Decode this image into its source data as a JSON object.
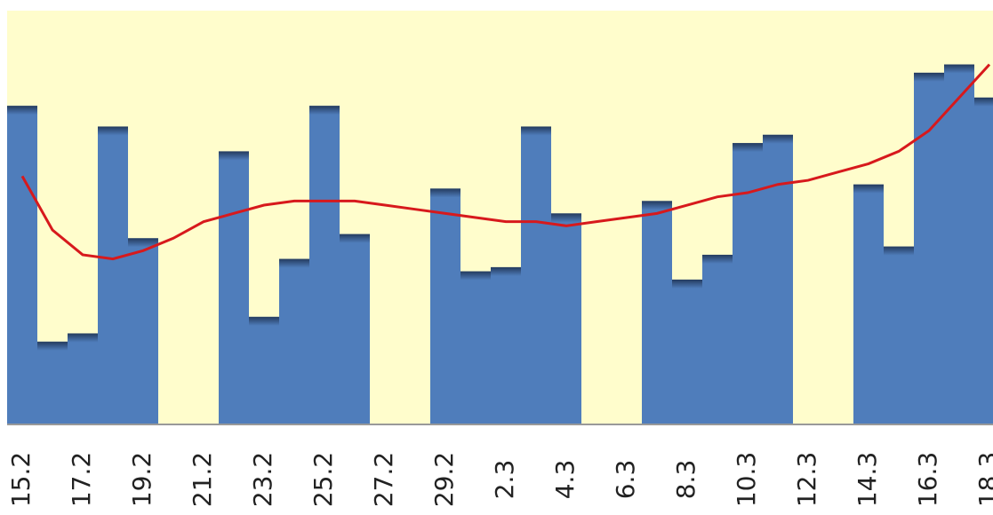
{
  "chart_data": {
    "type": "bar",
    "categories": [
      "15.2",
      null,
      "17.2",
      null,
      "19.2",
      null,
      "21.2",
      null,
      "23.2",
      null,
      "25.2",
      null,
      "27.2",
      null,
      "29.2",
      null,
      "2.3",
      null,
      "4.3",
      null,
      "6.3",
      null,
      "8.3",
      null,
      "10.3",
      null,
      "12.3",
      null,
      "14.3",
      null,
      "16.3",
      null,
      "18.3"
    ],
    "values": [
      77,
      20,
      22,
      72,
      45,
      0,
      0,
      66,
      26,
      40,
      77,
      46,
      0,
      0,
      57,
      37,
      38,
      72,
      51,
      0,
      0,
      54,
      35,
      41,
      68,
      70,
      0,
      0,
      58,
      43,
      85,
      87,
      79
    ],
    "color": "#4f7dbb",
    "trendline": {
      "color": "#d7191c",
      "values": [
        60,
        47,
        41,
        40,
        42,
        45,
        49,
        51,
        53,
        54,
        54,
        54,
        53,
        52,
        51,
        50,
        49,
        49,
        48,
        49,
        50,
        51,
        53,
        55,
        56,
        58,
        59,
        61,
        63,
        66,
        71,
        79,
        87
      ]
    },
    "ylim": [
      0,
      100
    ],
    "background": "#fffdcc"
  }
}
